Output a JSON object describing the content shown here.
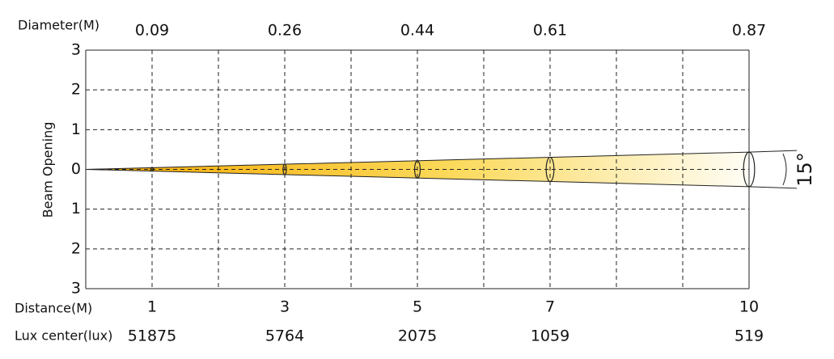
{
  "chart_data": {
    "type": "beam",
    "y_label": "Beam Opening",
    "x": [
      1,
      3,
      5,
      7,
      10
    ],
    "xlim": [
      0,
      10
    ],
    "xticks": [
      0,
      1,
      2,
      3,
      4,
      5,
      6,
      7,
      8,
      9,
      10
    ],
    "ylim": [
      -3,
      3
    ],
    "yticks": [
      3,
      2,
      1,
      0,
      {
        "value": -1,
        "label": "1"
      },
      {
        "value": -2,
        "label": "2"
      },
      {
        "value": -3,
        "label": "3"
      }
    ],
    "grid": true,
    "x_row_label": "Distance(M)",
    "diameter": {
      "label": "Diameter(M)",
      "values": [
        0.09,
        0.26,
        0.44,
        0.61,
        0.87
      ]
    },
    "lux": {
      "label": "Lux center(lux)",
      "values": [
        51875,
        5764,
        2075,
        1059,
        519
      ]
    },
    "beam_angle_label": "15°",
    "color": "#f5a800"
  }
}
